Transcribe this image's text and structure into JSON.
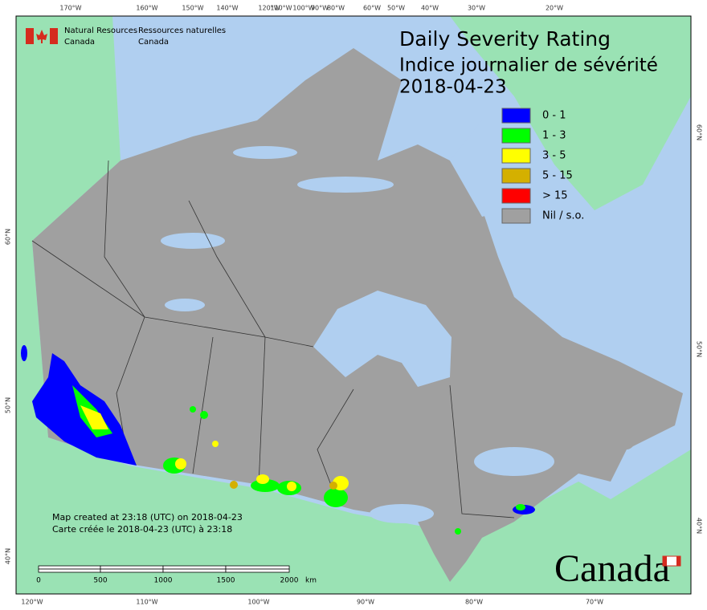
{
  "header": {
    "agency_en": "Natural Resources",
    "country_en": "Canada",
    "agency_fr": "Ressources naturelles",
    "country_fr": "Canada"
  },
  "title": {
    "line_en": "Daily Severity Rating",
    "line_fr": "Indice journalier de sévérité",
    "date": "2018-04-23"
  },
  "legend": [
    {
      "label": "0 - 1",
      "color": "#0000ff"
    },
    {
      "label": "1 - 3",
      "color": "#00ff00"
    },
    {
      "label": "3 - 5",
      "color": "#ffff00"
    },
    {
      "label": "5 - 15",
      "color": "#d4b000"
    },
    {
      "label": "> 15",
      "color": "#ff0000"
    },
    {
      "label": "Nil / s.o.",
      "color": "#a0a0a0"
    }
  ],
  "graticule": {
    "top": [
      "170°W",
      "160°W",
      "150°W",
      "140°W",
      "120°W",
      "110°W",
      "100°W",
      "90°W",
      "80°W",
      "60°W",
      "50°W",
      "40°W",
      "30°W",
      "20°W"
    ],
    "bottom": [
      "120°W",
      "110°W",
      "100°W",
      "90°W",
      "80°W",
      "70°W"
    ],
    "left": [
      "60°N",
      "50°N",
      "40°N"
    ],
    "right": [
      "60°N",
      "50°N",
      "40°N"
    ]
  },
  "scale_bar": {
    "labels": [
      "0",
      "500",
      "1000",
      "1500",
      "2000"
    ],
    "unit": "km"
  },
  "footer": {
    "created_en": "Map created at 23:18 (UTC) on 2018-04-23",
    "created_fr": "Carte créée le 2018-04-23 (UTC) à 23:18"
  },
  "wordmark": "Canada"
}
